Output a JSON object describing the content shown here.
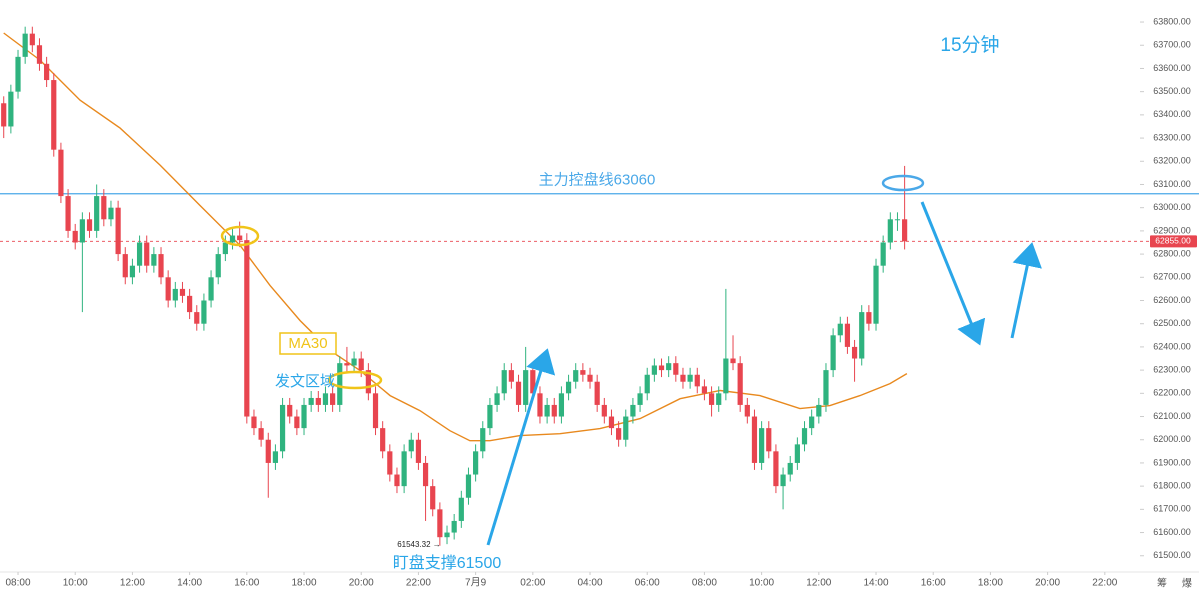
{
  "chart_data": {
    "type": "candlestick",
    "annotations": {
      "timeframe": "15分钟",
      "ma_label": "MA30",
      "post_zone": "发文区域",
      "support": "盯盘支撑61500",
      "low_marker": "61543.32 →"
    },
    "hline": {
      "value": 63060,
      "label": "主力控盘线63060",
      "color": "#4aa8e8"
    },
    "last_price": {
      "value": 62855,
      "label": "62855.00",
      "color": "#e8454f"
    },
    "corner_icons": [
      "筹",
      "爆"
    ],
    "up_color": "#2fb37f",
    "down_color": "#e8454f",
    "xlim": [
      7.37,
      47.23
    ],
    "ylim": [
      61430,
      63895
    ],
    "grid": false,
    "xticks": [
      {
        "value": 8,
        "label": "08:00"
      },
      {
        "value": 10,
        "label": "10:00"
      },
      {
        "value": 12,
        "label": "12:00"
      },
      {
        "value": 14,
        "label": "14:00"
      },
      {
        "value": 16,
        "label": "16:00"
      },
      {
        "value": 18,
        "label": "18:00"
      },
      {
        "value": 20,
        "label": "20:00"
      },
      {
        "value": 22,
        "label": "22:00"
      },
      {
        "value": 24,
        "label": "7月9"
      },
      {
        "value": 26,
        "label": "02:00"
      },
      {
        "value": 28,
        "label": "04:00"
      },
      {
        "value": 30,
        "label": "06:00"
      },
      {
        "value": 32,
        "label": "08:00"
      },
      {
        "value": 34,
        "label": "10:00"
      },
      {
        "value": 36,
        "label": "12:00"
      },
      {
        "value": 38,
        "label": "14:00"
      },
      {
        "value": 40,
        "label": "16:00"
      },
      {
        "value": 42,
        "label": "18:00"
      },
      {
        "value": 44,
        "label": "20:00"
      },
      {
        "value": 46,
        "label": "22:00"
      }
    ],
    "yticks": [
      {
        "value": 61500,
        "label": "61500.00"
      },
      {
        "value": 61600,
        "label": "61600.00"
      },
      {
        "value": 61700,
        "label": "61700.00"
      },
      {
        "value": 61800,
        "label": "61800.00"
      },
      {
        "value": 61900,
        "label": "61900.00"
      },
      {
        "value": 62000,
        "label": "62000.00"
      },
      {
        "value": 62100,
        "label": "62100.00"
      },
      {
        "value": 62200,
        "label": "62200.00"
      },
      {
        "value": 62300,
        "label": "62300.00"
      },
      {
        "value": 62400,
        "label": "62400.00"
      },
      {
        "value": 62500,
        "label": "62500.00"
      },
      {
        "value": 62600,
        "label": "62600.00"
      },
      {
        "value": 62700,
        "label": "62700.00"
      },
      {
        "value": 62800,
        "label": "62800.00"
      },
      {
        "value": 62900,
        "label": "62900.00"
      },
      {
        "value": 63000,
        "label": "63000.00"
      },
      {
        "value": 63100,
        "label": "63100.00"
      },
      {
        "value": 63200,
        "label": "63200.00"
      },
      {
        "value": 63300,
        "label": "63300.00"
      },
      {
        "value": 63400,
        "label": "63400.00"
      },
      {
        "value": 63500,
        "label": "63500.00"
      },
      {
        "value": 63600,
        "label": "63600.00"
      },
      {
        "value": 63700,
        "label": "63700.00"
      },
      {
        "value": 63800,
        "label": "63800.00"
      }
    ],
    "x": [
      7.5,
      7.75,
      8,
      8.25,
      8.5,
      8.75,
      9,
      9.25,
      9.5,
      9.75,
      10,
      10.25,
      10.5,
      10.75,
      11,
      11.25,
      11.5,
      11.75,
      12,
      12.25,
      12.5,
      12.75,
      13,
      13.25,
      13.5,
      13.75,
      14,
      14.25,
      14.5,
      14.75,
      15,
      15.25,
      15.5,
      15.75,
      16,
      16.25,
      16.5,
      16.75,
      17,
      17.25,
      17.5,
      17.75,
      18,
      18.25,
      18.5,
      18.75,
      19,
      19.25,
      19.5,
      19.75,
      20,
      20.25,
      20.5,
      20.75,
      21,
      21.25,
      21.5,
      21.75,
      22,
      22.25,
      22.5,
      22.75,
      23,
      23.25,
      23.5,
      23.75,
      24,
      24.25,
      24.5,
      24.75,
      25,
      25.25,
      25.5,
      25.75,
      26,
      26.25,
      26.5,
      26.75,
      27,
      27.25,
      27.5,
      27.75,
      28,
      28.25,
      28.5,
      28.75,
      29,
      29.25,
      29.5,
      29.75,
      30,
      30.25,
      30.5,
      30.75,
      31,
      31.25,
      31.5,
      31.75,
      32,
      32.25,
      32.5,
      32.75,
      33,
      33.25,
      33.5,
      33.75,
      34,
      34.25,
      34.5,
      34.75,
      35,
      35.25,
      35.5,
      35.75,
      36,
      36.25,
      36.5,
      36.75,
      37,
      37.25,
      37.5,
      37.75,
      38,
      38.25,
      38.5,
      38.75,
      39
    ],
    "open": [
      63450,
      63350,
      63500,
      63650,
      63750,
      63700,
      63620,
      63550,
      63250,
      63050,
      62900,
      62850,
      62950,
      62900,
      63050,
      62950,
      63000,
      62800,
      62700,
      62750,
      62850,
      62750,
      62800,
      62700,
      62600,
      62650,
      62620,
      62550,
      62500,
      62600,
      62700,
      62800,
      62850,
      62880,
      62860,
      62100,
      62050,
      62000,
      61900,
      61950,
      62150,
      62100,
      62050,
      62150,
      62180,
      62150,
      62200,
      62150,
      62330,
      62320,
      62350,
      62300,
      62200,
      62050,
      61950,
      61850,
      61800,
      61950,
      62000,
      61900,
      61800,
      61700,
      61580,
      61600,
      61650,
      61750,
      61850,
      61950,
      62050,
      62150,
      62200,
      62300,
      62250,
      62150,
      62300,
      62200,
      62100,
      62150,
      62100,
      62200,
      62250,
      62300,
      62280,
      62250,
      62150,
      62100,
      62050,
      62000,
      62100,
      62150,
      62200,
      62280,
      62320,
      62300,
      62330,
      62280,
      62250,
      62280,
      62230,
      62200,
      62150,
      62200,
      62350,
      62330,
      62150,
      62100,
      61900,
      62050,
      61950,
      61800,
      61850,
      61900,
      61980,
      62050,
      62100,
      62150,
      62300,
      62450,
      62500,
      62400,
      62350,
      62550,
      62500,
      62750,
      62850,
      62950,
      62950
    ],
    "high": [
      63480,
      63530,
      63680,
      63780,
      63780,
      63730,
      63650,
      63580,
      63280,
      63080,
      62930,
      62980,
      62980,
      63100,
      63080,
      63030,
      63030,
      62830,
      62780,
      62880,
      62880,
      62830,
      62830,
      62730,
      62680,
      62680,
      62650,
      62580,
      62630,
      62730,
      62830,
      62880,
      62910,
      62940,
      62890,
      62130,
      62080,
      62030,
      61980,
      62180,
      62180,
      62130,
      62180,
      62210,
      62210,
      62230,
      62230,
      62360,
      62400,
      62380,
      62380,
      62330,
      62230,
      62080,
      61980,
      61880,
      61980,
      62030,
      62030,
      61930,
      61830,
      61730,
      61630,
      61680,
      61780,
      61880,
      61980,
      62080,
      62180,
      62230,
      62330,
      62330,
      62280,
      62400,
      62330,
      62230,
      62180,
      62180,
      62230,
      62280,
      62330,
      62330,
      62310,
      62280,
      62180,
      62130,
      62080,
      62130,
      62180,
      62230,
      62310,
      62350,
      62350,
      62360,
      62360,
      62310,
      62310,
      62310,
      62260,
      62230,
      62230,
      62650,
      62450,
      62360,
      62180,
      62130,
      62080,
      62080,
      61980,
      61880,
      61930,
      62010,
      62080,
      62130,
      62180,
      62330,
      62480,
      62530,
      62530,
      62430,
      62580,
      62580,
      62780,
      62880,
      62980,
      62980,
      63180
    ],
    "low": [
      63300,
      63320,
      63470,
      63620,
      63670,
      63590,
      63520,
      63220,
      63020,
      62870,
      62820,
      62550,
      62870,
      62870,
      62920,
      62920,
      62770,
      62670,
      62670,
      62720,
      62720,
      62720,
      62670,
      62570,
      62570,
      62590,
      62520,
      62470,
      62470,
      62570,
      62670,
      62770,
      62820,
      62830,
      62070,
      62020,
      61970,
      61750,
      61870,
      61920,
      62070,
      62020,
      62020,
      62120,
      62120,
      62120,
      62120,
      62120,
      62290,
      62290,
      62270,
      62170,
      62020,
      61920,
      61820,
      61770,
      61770,
      61920,
      61870,
      61650,
      61670,
      61543,
      61550,
      61570,
      61620,
      61720,
      61820,
      61920,
      62020,
      62120,
      62170,
      62220,
      62120,
      62120,
      62170,
      62070,
      62070,
      62070,
      62070,
      62170,
      62220,
      62250,
      62220,
      62120,
      62070,
      62020,
      61970,
      61970,
      62070,
      62120,
      62170,
      62250,
      62270,
      62270,
      62250,
      62220,
      62220,
      62200,
      62170,
      62100,
      62120,
      62170,
      62300,
      62120,
      62070,
      61870,
      61870,
      61920,
      61770,
      61700,
      61820,
      61870,
      61950,
      62020,
      62070,
      62120,
      62270,
      62420,
      62370,
      62250,
      62320,
      62470,
      62470,
      62720,
      62820,
      62900,
      62820
    ],
    "close": [
      63350,
      63500,
      63650,
      63750,
      63700,
      63620,
      63550,
      63250,
      63050,
      62900,
      62850,
      62950,
      62900,
      63050,
      62950,
      63000,
      62800,
      62700,
      62750,
      62850,
      62750,
      62800,
      62700,
      62600,
      62650,
      62620,
      62550,
      62500,
      62600,
      62700,
      62800,
      62850,
      62880,
      62860,
      62100,
      62050,
      62000,
      61900,
      61950,
      62150,
      62100,
      62050,
      62150,
      62180,
      62150,
      62200,
      62150,
      62330,
      62320,
      62350,
      62300,
      62200,
      62050,
      61950,
      61850,
      61800,
      61950,
      62000,
      61900,
      61800,
      61700,
      61580,
      61600,
      61650,
      61750,
      61850,
      61950,
      62050,
      62150,
      62200,
      62300,
      62250,
      62150,
      62300,
      62200,
      62100,
      62150,
      62100,
      62200,
      62250,
      62300,
      62280,
      62250,
      62150,
      62100,
      62050,
      62000,
      62100,
      62150,
      62200,
      62280,
      62320,
      62300,
      62330,
      62280,
      62250,
      62280,
      62230,
      62200,
      62150,
      62200,
      62350,
      62330,
      62150,
      62100,
      61900,
      62050,
      61950,
      61800,
      61850,
      61900,
      61980,
      62050,
      62100,
      62150,
      62300,
      62450,
      62500,
      62400,
      62350,
      62550,
      62500,
      62750,
      62850,
      62950,
      62950,
      62855
    ],
    "ma": {
      "name": "MA30",
      "color": "#e8891e",
      "x": [
        7.5,
        8.77,
        10.17,
        11.57,
        12.97,
        14.36,
        15.76,
        16.81,
        17.86,
        18.91,
        19.96,
        21.01,
        22.06,
        23.1,
        23.8,
        24.5,
        25.55,
        26.95,
        28.35,
        29.75,
        31.15,
        32.55,
        33.94,
        35.34,
        36.39,
        37.44,
        38.49,
        39.08
      ],
      "values": [
        63753,
        63636,
        63463,
        63343,
        63183,
        63010,
        62838,
        62665,
        62514,
        62385,
        62298,
        62190,
        62125,
        62039,
        61996,
        61996,
        62018,
        62026,
        62048,
        62091,
        62177,
        62212,
        62190,
        62134,
        62147,
        62190,
        62242,
        62285
      ]
    }
  }
}
